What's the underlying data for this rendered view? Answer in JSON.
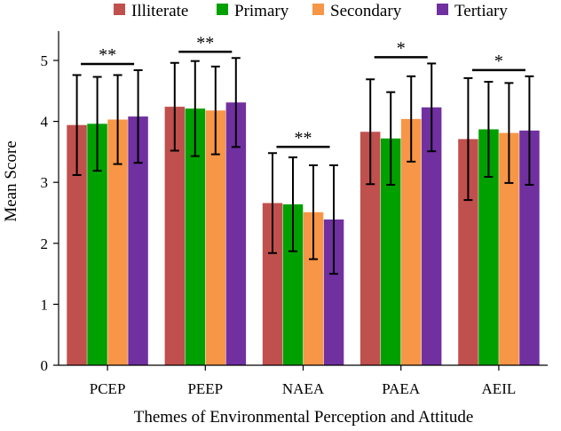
{
  "chart_data": {
    "type": "bar",
    "title": "",
    "xlabel": "Themes of Environmental Perception and Attitude",
    "ylabel": "Mean Score",
    "ylim": [
      0,
      5.5
    ],
    "yticks": [
      "0",
      "1",
      "2",
      "3",
      "4",
      "5"
    ],
    "categories": [
      "PCEP",
      "PEEP",
      "NAEA",
      "PAEA",
      "AEIL"
    ],
    "legend_position": "top",
    "grid": false,
    "error_bars": "± standard deviation",
    "series": [
      {
        "name": "Illiterate",
        "color": "#c0504d",
        "values": [
          3.94,
          4.24,
          2.66,
          3.83,
          3.71
        ],
        "errors": [
          0.82,
          0.72,
          0.82,
          0.86,
          1.0
        ]
      },
      {
        "name": "Primary",
        "color": "#00a000",
        "values": [
          3.96,
          4.21,
          2.64,
          3.72,
          3.87
        ],
        "errors": [
          0.77,
          0.78,
          0.77,
          0.76,
          0.78
        ]
      },
      {
        "name": "Secondary",
        "color": "#f79646",
        "values": [
          4.03,
          4.18,
          2.51,
          4.04,
          3.81
        ],
        "errors": [
          0.73,
          0.72,
          0.77,
          0.7,
          0.82
        ]
      },
      {
        "name": "Tertiary",
        "color": "#7030a0",
        "values": [
          4.08,
          4.31,
          2.39,
          4.23,
          3.85
        ],
        "errors": [
          0.76,
          0.73,
          0.89,
          0.72,
          0.89
        ]
      }
    ],
    "significance": [
      "**",
      "**",
      "**",
      "*",
      "*"
    ]
  }
}
